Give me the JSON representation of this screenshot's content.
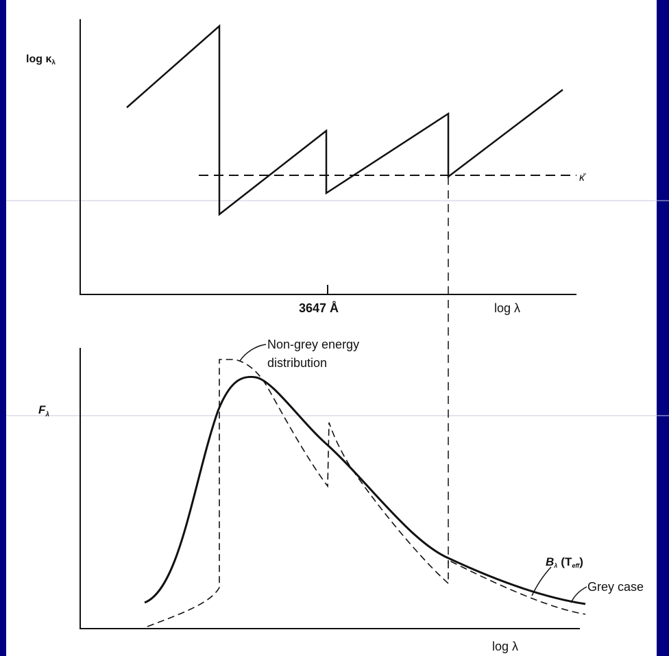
{
  "colors": {
    "frame": "#000080",
    "background": "#ffffff",
    "ink": "#111111",
    "guide": "#c8c8e0"
  },
  "top_panel": {
    "y_label": "log κ",
    "y_label_sub": "λ",
    "x_tick_label": "3647 Å",
    "x_label": "log λ",
    "mean_label": "κ̄"
  },
  "bottom_panel": {
    "y_label": "F",
    "y_label_sub": "λ",
    "x_label": "log λ",
    "annotation_nongrey_line1": "Non-grey energy",
    "annotation_nongrey_line2": "distribution",
    "annotation_planck": "B",
    "annotation_planck_sub": "λ",
    "annotation_planck_arg": "(T",
    "annotation_planck_arg_sub": "eff",
    "annotation_planck_close": ")",
    "annotation_grey": "Grey case"
  }
}
